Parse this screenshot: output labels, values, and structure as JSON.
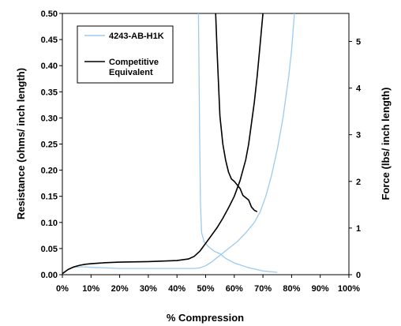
{
  "chart_data": {
    "type": "line",
    "xlabel": "% Compression",
    "ylabel_left": "Resistance (ohms/ inch length)",
    "ylabel_right": "Force (lbs/ inch length)",
    "xlim": [
      0,
      100
    ],
    "ylim_left": [
      0,
      0.5
    ],
    "ylim_right": [
      0,
      5.6
    ],
    "x_ticks": [
      {
        "value": 0,
        "label": "0%"
      },
      {
        "value": 10,
        "label": "10%"
      },
      {
        "value": 20,
        "label": "20%"
      },
      {
        "value": 30,
        "label": "30%"
      },
      {
        "value": 40,
        "label": "40%"
      },
      {
        "value": 50,
        "label": "50%"
      },
      {
        "value": 60,
        "label": "60%"
      },
      {
        "value": 70,
        "label": "70%"
      },
      {
        "value": 80,
        "label": "80%"
      },
      {
        "value": 90,
        "label": "90%"
      },
      {
        "value": 100,
        "label": "100%"
      }
    ],
    "y_left_ticks": [
      {
        "value": 0,
        "label": "0.00"
      },
      {
        "value": 0.05,
        "label": "0.05"
      },
      {
        "value": 0.1,
        "label": "0.10"
      },
      {
        "value": 0.15,
        "label": "0.15"
      },
      {
        "value": 0.2,
        "label": "0.20"
      },
      {
        "value": 0.25,
        "label": "0.25"
      },
      {
        "value": 0.3,
        "label": "0.30"
      },
      {
        "value": 0.35,
        "label": "0.35"
      },
      {
        "value": 0.4,
        "label": "0.40"
      },
      {
        "value": 0.45,
        "label": "0.45"
      },
      {
        "value": 0.5,
        "label": "0.50"
      }
    ],
    "y_right_ticks": [
      {
        "value": 0,
        "label": "0"
      },
      {
        "value": 1,
        "label": "1"
      },
      {
        "value": 2,
        "label": "2"
      },
      {
        "value": 3,
        "label": "3"
      },
      {
        "value": 4,
        "label": "4"
      },
      {
        "value": 5,
        "label": "5"
      }
    ],
    "grid": false,
    "legend_position": "top-left",
    "series": [
      {
        "name": "4243-AB-H1K",
        "color": "#9ccaf0",
        "axis": "left",
        "points": [
          [
            0,
            0.002
          ],
          [
            2,
            0.01
          ],
          [
            4,
            0.014
          ],
          [
            6,
            0.015
          ],
          [
            8,
            0.015
          ],
          [
            10,
            0.014
          ],
          [
            15,
            0.013
          ],
          [
            20,
            0.012
          ],
          [
            30,
            0.012
          ],
          [
            40,
            0.012
          ],
          [
            46,
            0.012
          ]
        ]
      },
      {
        "name": "4243-AB-H1K",
        "color": "#9ccaf0",
        "axis": "right",
        "points": [
          [
            47.5,
            5.6
          ],
          [
            47.9,
            3.0
          ],
          [
            48.2,
            1.5
          ],
          [
            48.6,
            0.9
          ],
          [
            49.5,
            0.7
          ],
          [
            51,
            0.6
          ],
          [
            53,
            0.5
          ],
          [
            55,
            0.45
          ],
          [
            57,
            0.35
          ],
          [
            60,
            0.25
          ],
          [
            65,
            0.15
          ],
          [
            70,
            0.08
          ],
          [
            75,
            0.05
          ]
        ]
      },
      {
        "name": "4243-AB-H1K",
        "color": "#9ccaf0",
        "axis": "left",
        "points": [
          [
            46,
            0.012
          ],
          [
            48,
            0.013
          ],
          [
            50,
            0.017
          ],
          [
            52,
            0.024
          ],
          [
            55,
            0.037
          ],
          [
            58,
            0.05
          ],
          [
            61,
            0.063
          ],
          [
            64,
            0.08
          ],
          [
            67,
            0.1
          ],
          [
            69,
            0.12
          ],
          [
            71,
            0.15
          ],
          [
            73,
            0.19
          ],
          [
            75,
            0.24
          ],
          [
            77,
            0.3
          ],
          [
            79,
            0.38
          ],
          [
            80,
            0.43
          ],
          [
            81,
            0.5
          ]
        ]
      },
      {
        "name": "Competitive Equivalent",
        "color": "#000000",
        "axis": "left",
        "points": [
          [
            0,
            0.002
          ],
          [
            2,
            0.01
          ],
          [
            4,
            0.015
          ],
          [
            6,
            0.018
          ],
          [
            8,
            0.02
          ],
          [
            10,
            0.021
          ],
          [
            15,
            0.023
          ],
          [
            20,
            0.024
          ],
          [
            30,
            0.025
          ],
          [
            40,
            0.027
          ],
          [
            44,
            0.03
          ],
          [
            46,
            0.035
          ],
          [
            48,
            0.045
          ],
          [
            50,
            0.06
          ],
          [
            52,
            0.075
          ],
          [
            54,
            0.09
          ],
          [
            56,
            0.108
          ],
          [
            58,
            0.128
          ],
          [
            60,
            0.15
          ],
          [
            62,
            0.18
          ],
          [
            64,
            0.22
          ],
          [
            65,
            0.25
          ],
          [
            66,
            0.29
          ],
          [
            67,
            0.33
          ],
          [
            68,
            0.38
          ],
          [
            69,
            0.44
          ],
          [
            70,
            0.5
          ]
        ]
      },
      {
        "name": "Competitive Equivalent",
        "color": "#000000",
        "axis": "right",
        "points": [
          [
            53.5,
            5.6
          ],
          [
            54,
            4.8
          ],
          [
            54.5,
            4.1
          ],
          [
            55,
            3.4
          ],
          [
            56,
            2.8
          ],
          [
            57,
            2.45
          ],
          [
            58,
            2.2
          ],
          [
            59,
            2.05
          ],
          [
            60,
            2.0
          ],
          [
            62,
            1.85
          ],
          [
            63,
            1.7
          ],
          [
            65,
            1.6
          ],
          [
            66,
            1.45
          ],
          [
            67,
            1.38
          ],
          [
            68,
            1.35
          ]
        ]
      }
    ]
  }
}
